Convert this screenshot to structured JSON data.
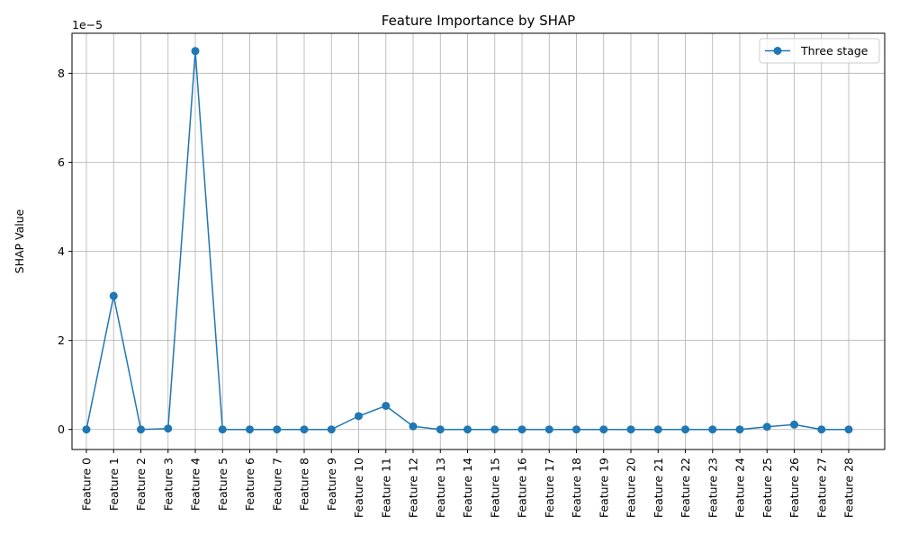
{
  "chart_data": {
    "type": "line",
    "title": "Feature Importance by SHAP",
    "xlabel": "",
    "ylabel": "SHAP Value",
    "y_offset_label": "1e−5",
    "ylim": [
      -0.45,
      8.9
    ],
    "yticks": [
      {
        "value": 0,
        "label": "0"
      },
      {
        "value": 2,
        "label": "2"
      },
      {
        "value": 4,
        "label": "4"
      },
      {
        "value": 6,
        "label": "6"
      },
      {
        "value": 8,
        "label": "8"
      }
    ],
    "categories": [
      "Feature 0",
      "Feature 1",
      "Feature 2",
      "Feature 3",
      "Feature 4",
      "Feature 5",
      "Feature 6",
      "Feature 7",
      "Feature 8",
      "Feature 9",
      "Feature 10",
      "Feature 11",
      "Feature 12",
      "Feature 13",
      "Feature 14",
      "Feature 15",
      "Feature 16",
      "Feature 17",
      "Feature 18",
      "Feature 19",
      "Feature 20",
      "Feature 21",
      "Feature 22",
      "Feature 23",
      "Feature 24",
      "Feature 25",
      "Feature 26",
      "Feature 27",
      "Feature 28"
    ],
    "series": [
      {
        "name": "Three stage",
        "color": "#1f77b4",
        "marker": "circle",
        "values": [
          0,
          3.0,
          0,
          0.02,
          8.5,
          0,
          0,
          0,
          0,
          0,
          0.3,
          0.53,
          0.07,
          0,
          0,
          0,
          0,
          0,
          0,
          0,
          0,
          0,
          0,
          0,
          0,
          0.06,
          0.11,
          0,
          0
        ]
      }
    ],
    "grid": true,
    "grid_color": "#b0b0b0",
    "legend": "top-right"
  }
}
